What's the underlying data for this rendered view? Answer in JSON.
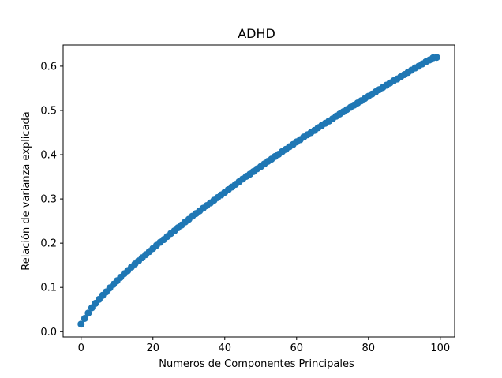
{
  "chart_data": {
    "type": "scatter",
    "title": "ADHD",
    "xlabel": "Numeros de Componentes Principales",
    "ylabel": "Relación de varianza explicada",
    "xlim": [
      -5,
      104
    ],
    "ylim": [
      -0.012,
      0.648
    ],
    "xticks": [
      0,
      20,
      40,
      60,
      80,
      100
    ],
    "xtick_labels": [
      "0",
      "20",
      "40",
      "60",
      "80",
      "100"
    ],
    "yticks": [
      0.0,
      0.1,
      0.2,
      0.3,
      0.4,
      0.5,
      0.6
    ],
    "ytick_labels": [
      "0.0",
      "0.1",
      "0.2",
      "0.3",
      "0.4",
      "0.5",
      "0.6"
    ],
    "grid": false,
    "marker_color": "#1f77b4",
    "series": [
      {
        "x": [
          0,
          1,
          2,
          3,
          4,
          5,
          6,
          7,
          8,
          9,
          10,
          11,
          12,
          13,
          14,
          15,
          16,
          17,
          18,
          19,
          20,
          21,
          22,
          23,
          24,
          25,
          26,
          27,
          28,
          29,
          30,
          31,
          32,
          33,
          34,
          35,
          36,
          37,
          38,
          39,
          40,
          41,
          42,
          43,
          44,
          45,
          46,
          47,
          48,
          49,
          50,
          51,
          52,
          53,
          54,
          55,
          56,
          57,
          58,
          59,
          60,
          61,
          62,
          63,
          64,
          65,
          66,
          67,
          68,
          69,
          70,
          71,
          72,
          73,
          74,
          75,
          76,
          77,
          78,
          79,
          80,
          81,
          82,
          83,
          84,
          85,
          86,
          87,
          88,
          89,
          90,
          91,
          92,
          93,
          94,
          95,
          96,
          97,
          98,
          99
        ],
        "y": [
          0.017,
          0.03,
          0.042,
          0.054,
          0.064,
          0.073,
          0.082,
          0.09,
          0.099,
          0.107,
          0.115,
          0.123,
          0.131,
          0.138,
          0.146,
          0.153,
          0.16,
          0.167,
          0.174,
          0.181,
          0.188,
          0.195,
          0.202,
          0.208,
          0.215,
          0.222,
          0.228,
          0.235,
          0.241,
          0.248,
          0.254,
          0.261,
          0.267,
          0.273,
          0.279,
          0.285,
          0.291,
          0.297,
          0.303,
          0.309,
          0.315,
          0.321,
          0.327,
          0.333,
          0.339,
          0.345,
          0.351,
          0.356,
          0.362,
          0.368,
          0.373,
          0.379,
          0.385,
          0.39,
          0.396,
          0.401,
          0.407,
          0.412,
          0.418,
          0.423,
          0.429,
          0.434,
          0.44,
          0.445,
          0.45,
          0.455,
          0.461,
          0.466,
          0.471,
          0.476,
          0.481,
          0.487,
          0.492,
          0.497,
          0.502,
          0.507,
          0.512,
          0.517,
          0.522,
          0.527,
          0.532,
          0.537,
          0.542,
          0.547,
          0.552,
          0.557,
          0.562,
          0.567,
          0.571,
          0.576,
          0.581,
          0.586,
          0.591,
          0.596,
          0.6,
          0.605,
          0.61,
          0.614,
          0.619,
          0.62
        ]
      }
    ]
  }
}
